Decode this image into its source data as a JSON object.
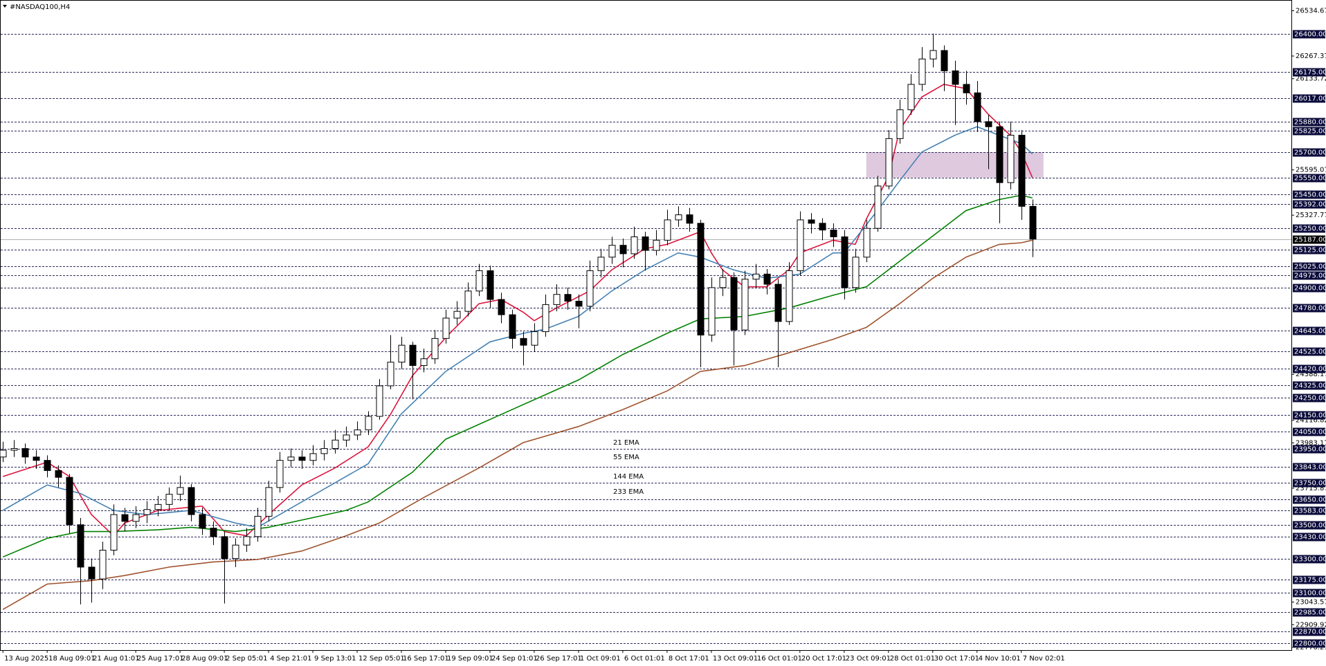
{
  "chart_data": {
    "type": "candlestick",
    "title": "#NASDAQ100,H4",
    "xlim": [
      -0.2,
      116.4
    ],
    "ylim": [
      22760,
      26590
    ],
    "xticks": [
      {
        "value": 0,
        "label": "13 Aug 2025"
      },
      {
        "value": 4,
        "label": "18 Aug 09:01"
      },
      {
        "value": 8,
        "label": "21 Aug 01:01"
      },
      {
        "value": 12,
        "label": "25 Aug 17:01"
      },
      {
        "value": 16,
        "label": "28 Aug 09:01"
      },
      {
        "value": 20,
        "label": "2 Sep 05:01"
      },
      {
        "value": 24,
        "label": "4 Sep 21:01"
      },
      {
        "value": 28,
        "label": "9 Sep 13:01"
      },
      {
        "value": 32,
        "label": "12 Sep 05:01"
      },
      {
        "value": 36,
        "label": "16 Sep 17:01"
      },
      {
        "value": 40,
        "label": "19 Sep 09:01"
      },
      {
        "value": 44,
        "label": "24 Sep 01:01"
      },
      {
        "value": 48,
        "label": "26 Sep 17:01"
      },
      {
        "value": 52,
        "label": "1 Oct 09:01"
      },
      {
        "value": 56,
        "label": "6 Oct 01:01"
      },
      {
        "value": 60,
        "label": "8 Oct 17:01"
      },
      {
        "value": 64,
        "label": "13 Oct 09:01"
      },
      {
        "value": 68,
        "label": "16 Oct 01:01"
      },
      {
        "value": 72,
        "label": "20 Oct 17:01"
      },
      {
        "value": 76,
        "label": "23 Oct 09:01"
      },
      {
        "value": 80,
        "label": "28 Oct 01:01"
      },
      {
        "value": 84,
        "label": "30 Oct 17:01"
      },
      {
        "value": 88,
        "label": "4 Nov 10:01"
      },
      {
        "value": 92,
        "label": "7 Nov 02:01"
      }
    ],
    "yticks": [
      26534.67,
      26267.37,
      26133.72,
      25595.07,
      25327.77,
      24388.17,
      24116.82,
      23983.17,
      23715.87,
      23043.57,
      22909.92,
      22776.27
    ],
    "levels": [
      {
        "value": 26400,
        "label": "26400.00"
      },
      {
        "value": 26175,
        "label": "26175.00"
      },
      {
        "value": 26017,
        "label": "26017.00"
      },
      {
        "value": 25880,
        "label": "25880.00"
      },
      {
        "value": 25825,
        "label": "25825.00"
      },
      {
        "value": 25700,
        "label": "25700.00"
      },
      {
        "value": 25550,
        "label": "25550.00"
      },
      {
        "value": 25450,
        "label": "25450.00"
      },
      {
        "value": 25392,
        "label": "25392.00"
      },
      {
        "value": 25250,
        "label": "25250.00"
      },
      {
        "value": 25125,
        "label": "25125.00"
      },
      {
        "value": 25025,
        "label": "25025.00"
      },
      {
        "value": 24975,
        "label": "24975.00"
      },
      {
        "value": 24900,
        "label": "24900.00"
      },
      {
        "value": 24780,
        "label": "24780.00"
      },
      {
        "value": 24645,
        "label": "24645.00"
      },
      {
        "value": 24525,
        "label": "24525.00"
      },
      {
        "value": 24420,
        "label": "24420.00"
      },
      {
        "value": 24325,
        "label": "24325.00"
      },
      {
        "value": 24250,
        "label": "24250.00"
      },
      {
        "value": 24150,
        "label": "24150.00"
      },
      {
        "value": 24050,
        "label": "24050.00"
      },
      {
        "value": 23950,
        "label": "23950.00"
      },
      {
        "value": 23843,
        "label": "23843.00"
      },
      {
        "value": 23750,
        "label": "23750.00"
      },
      {
        "value": 23650,
        "label": "23650.00"
      },
      {
        "value": 23583,
        "label": "23583.00"
      },
      {
        "value": 23500,
        "label": "23500.00"
      },
      {
        "value": 23430,
        "label": "23430.00"
      },
      {
        "value": 23300,
        "label": "23300.00"
      },
      {
        "value": 23175,
        "label": "23175.00"
      },
      {
        "value": 23100,
        "label": "23100.00"
      },
      {
        "value": 22985,
        "label": "22985.00"
      },
      {
        "value": 22870,
        "label": "22870.00"
      },
      {
        "value": 22800,
        "label": "22800.00"
      }
    ],
    "current_price": {
      "value": 25187,
      "label": "25187.00"
    },
    "zone": {
      "x": [
        78,
        94
      ],
      "y": [
        25550,
        25700
      ],
      "color": "#d8bfd8"
    },
    "candles": {
      "up_color": "#ffffff",
      "down_color": "#000000",
      "open": [
        23900,
        23940,
        23950,
        23900,
        23880,
        23820,
        23780,
        23500,
        23250,
        23180,
        23350,
        23560,
        23520,
        23560,
        23590,
        23620,
        23680,
        23720,
        23560,
        23480,
        23430,
        23300,
        23380,
        23430,
        23550,
        23720,
        23880,
        23900,
        23880,
        23920,
        23950,
        24000,
        24030,
        24060,
        24140,
        24320,
        24460,
        24560,
        24440,
        24480,
        24600,
        24720,
        24760,
        24880,
        25000,
        24830,
        24740,
        24600,
        24560,
        24640,
        24800,
        24860,
        24820,
        24790,
        25000,
        25080,
        25150,
        25100,
        25200,
        25120,
        25180,
        25300,
        25330,
        25280,
        24620,
        24900,
        24960,
        24650,
        24950,
        24980,
        24920,
        24700,
        25000,
        25300,
        25280,
        25240,
        25200,
        24900,
        25080,
        25250,
        25500,
        25780,
        25950,
        26100,
        26250,
        26300,
        26180,
        26100,
        26050,
        25880,
        25850,
        25520,
        25800,
        25380
      ],
      "high": [
        23990,
        24000,
        23980,
        23940,
        23910,
        23850,
        23800,
        23540,
        23300,
        23400,
        23620,
        23600,
        23610,
        23640,
        23670,
        23720,
        23790,
        23740,
        23600,
        23520,
        23460,
        23420,
        23480,
        23600,
        23760,
        23930,
        23950,
        23940,
        23970,
        24000,
        24060,
        24080,
        24110,
        24170,
        24360,
        24620,
        24610,
        24580,
        24540,
        24650,
        24770,
        24820,
        24930,
        25040,
        25030,
        24870,
        24770,
        24640,
        24690,
        24860,
        24920,
        24900,
        24860,
        25060,
        25130,
        25200,
        25190,
        25260,
        25230,
        25240,
        25360,
        25380,
        25370,
        25300,
        24960,
        25010,
        24990,
        25000,
        25040,
        25010,
        24950,
        25050,
        25350,
        25340,
        25310,
        25280,
        25240,
        25130,
        25300,
        25560,
        25830,
        26010,
        26160,
        26320,
        26400,
        26330,
        26240,
        26180,
        26120,
        25920,
        25880,
        25880,
        25830,
        25420
      ],
      "low": [
        23870,
        23900,
        23860,
        23830,
        23780,
        23720,
        23450,
        23030,
        23040,
        23120,
        23320,
        23460,
        23480,
        23510,
        23550,
        23580,
        23640,
        23520,
        23440,
        23380,
        23035,
        23250,
        23340,
        23400,
        23520,
        23690,
        23840,
        23830,
        23850,
        23880,
        23920,
        23960,
        24000,
        24030,
        24120,
        24300,
        24420,
        24240,
        24400,
        24450,
        24570,
        24680,
        24730,
        24850,
        24780,
        24690,
        24540,
        24440,
        24520,
        24610,
        24760,
        24770,
        24660,
        24760,
        24960,
        25040,
        25020,
        25070,
        25000,
        25090,
        25150,
        25260,
        25230,
        24430,
        24580,
        24850,
        24440,
        24620,
        24900,
        24860,
        24430,
        24680,
        24970,
        25220,
        25180,
        25140,
        24830,
        24870,
        25050,
        25230,
        25480,
        25750,
        25920,
        26060,
        26200,
        26060,
        25860,
        25980,
        25820,
        25600,
        25280,
        25480,
        25300,
        25080
      ],
      "close": [
        23940,
        23950,
        23900,
        23880,
        23820,
        23780,
        23500,
        23250,
        23180,
        23350,
        23560,
        23520,
        23560,
        23590,
        23620,
        23680,
        23720,
        23560,
        23480,
        23430,
        23300,
        23380,
        23430,
        23550,
        23720,
        23880,
        23900,
        23880,
        23920,
        23950,
        24000,
        24030,
        24060,
        24140,
        24320,
        24460,
        24560,
        24440,
        24480,
        24600,
        24720,
        24760,
        24880,
        25000,
        24830,
        24740,
        24600,
        24560,
        24640,
        24800,
        24860,
        24820,
        24790,
        25000,
        25080,
        25150,
        25100,
        25200,
        25120,
        25180,
        25300,
        25330,
        25280,
        24620,
        24900,
        24960,
        24650,
        24950,
        24980,
        24920,
        24700,
        25000,
        25300,
        25280,
        25240,
        25200,
        24900,
        25080,
        25250,
        25500,
        25780,
        25950,
        26100,
        26250,
        26300,
        26180,
        26100,
        26050,
        25880,
        25850,
        25520,
        25800,
        25380,
        25187
      ]
    },
    "series": [
      {
        "name": "21 EMA",
        "color": "#dc143c",
        "x": [
          0,
          4,
          6,
          8,
          10,
          11,
          14,
          18,
          20,
          22,
          24,
          27,
          30,
          33,
          35,
          37,
          40,
          43,
          45,
          47,
          48,
          50,
          53,
          55,
          58,
          60,
          63,
          64,
          65,
          67,
          69,
          71,
          72,
          75,
          77,
          78,
          80,
          81,
          83,
          85,
          87,
          89,
          91,
          92,
          93
        ],
        "values": [
          23785,
          23870,
          23785,
          23560,
          23435,
          23510,
          23585,
          23610,
          23460,
          23435,
          23560,
          23735,
          23835,
          23960,
          24150,
          24380,
          24605,
          24805,
          24830,
          24755,
          24705,
          24780,
          24880,
          25005,
          25130,
          25155,
          25230,
          25105,
          25005,
          24905,
          24905,
          25005,
          25105,
          25180,
          25155,
          25305,
          25555,
          25830,
          26025,
          26100,
          26075,
          25925,
          25800,
          25700,
          25550
        ]
      },
      {
        "name": "55 EMA",
        "color": "#4682b4",
        "x": [
          0,
          4,
          7,
          10,
          13,
          17,
          21,
          23,
          25,
          29,
          33,
          36,
          40,
          44,
          47,
          49,
          52,
          55,
          58,
          61,
          63,
          66,
          69,
          72,
          75,
          76,
          79,
          81,
          83,
          86,
          88,
          90,
          92,
          93
        ],
        "values": [
          23585,
          23735,
          23685,
          23585,
          23560,
          23585,
          23510,
          23485,
          23560,
          23710,
          23860,
          24155,
          24405,
          24580,
          24630,
          24655,
          24730,
          24880,
          25005,
          25105,
          25080,
          25005,
          24955,
          24980,
          25105,
          25105,
          25355,
          25530,
          25700,
          25800,
          25850,
          25800,
          25750,
          25690
        ]
      },
      {
        "name": "144 EMA",
        "color": "#008000",
        "x": [
          0,
          4,
          7,
          10,
          14,
          17,
          21,
          24,
          31,
          33,
          37,
          40,
          46,
          52,
          56,
          60,
          63,
          67,
          71,
          75,
          78,
          81,
          84,
          87,
          90,
          92,
          93
        ],
        "values": [
          23310,
          23420,
          23460,
          23460,
          23470,
          23485,
          23460,
          23485,
          23585,
          23635,
          23810,
          24005,
          24180,
          24355,
          24505,
          24630,
          24715,
          24730,
          24780,
          24855,
          24905,
          25055,
          25205,
          25355,
          25420,
          25445,
          25430
        ]
      },
      {
        "name": "233 EMA",
        "color": "#a0522d",
        "x": [
          0,
          4,
          8,
          11,
          15,
          19,
          23,
          27,
          31,
          34,
          38,
          43,
          47,
          52,
          56,
          60,
          63,
          67,
          71,
          75,
          78,
          81,
          84,
          87,
          90,
          92,
          93
        ],
        "values": [
          23000,
          23150,
          23170,
          23200,
          23250,
          23280,
          23295,
          23345,
          23435,
          23510,
          23660,
          23835,
          23985,
          24080,
          24180,
          24290,
          24405,
          24440,
          24515,
          24595,
          24665,
          24805,
          24955,
          25080,
          25155,
          25165,
          25180
        ]
      }
    ]
  }
}
